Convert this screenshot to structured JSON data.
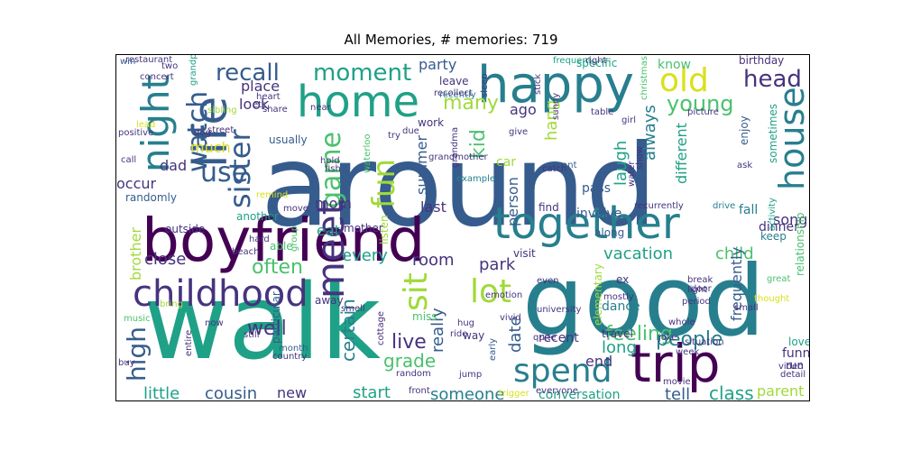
{
  "chart_data": {
    "type": "wordcloud",
    "title": "All Memories, # memories: 719",
    "colors": {
      "dark_purple": "#440154",
      "indigo": "#46337e",
      "blue_slate": "#365c8d",
      "steel_teal": "#277f8e",
      "teal": "#1fa187",
      "green": "#4ac16d",
      "yellow_green": "#a0da39",
      "yellow": "#d9e11b"
    },
    "words": [
      {
        "text": "around",
        "color": "blue_slate"
      },
      {
        "text": "walk",
        "color": "teal"
      },
      {
        "text": "good",
        "color": "steel_teal"
      },
      {
        "text": "boyfriend",
        "color": "dark_purple"
      },
      {
        "text": "together",
        "color": "steel_teal"
      },
      {
        "text": "happy",
        "color": "steel_teal"
      },
      {
        "text": "home",
        "color": "teal"
      },
      {
        "text": "life",
        "color": "blue_slate"
      },
      {
        "text": "trip",
        "color": "dark_purple"
      },
      {
        "text": "childhood",
        "color": "indigo"
      },
      {
        "text": "spend",
        "color": "steel_teal"
      },
      {
        "text": "old",
        "color": "yellow"
      },
      {
        "text": "night",
        "color": "steel_teal"
      },
      {
        "text": "house",
        "color": "steel_teal"
      },
      {
        "text": "watch",
        "color": "blue_slate"
      },
      {
        "text": "sister",
        "color": "blue_slate"
      },
      {
        "text": "meet",
        "color": "indigo"
      },
      {
        "text": "game",
        "color": "green"
      },
      {
        "text": "fun",
        "color": "yellow_green"
      },
      {
        "text": "moment",
        "color": "teal"
      },
      {
        "text": "recall",
        "color": "blue_slate"
      },
      {
        "text": "head",
        "color": "indigo"
      },
      {
        "text": "young",
        "color": "green"
      },
      {
        "text": "use",
        "color": "blue_slate"
      },
      {
        "text": "lot",
        "color": "yellow_green"
      },
      {
        "text": "sit",
        "color": "yellow_green"
      },
      {
        "text": "high",
        "color": "blue_slate"
      },
      {
        "text": "often",
        "color": "green"
      },
      {
        "text": "feeling",
        "color": "green"
      },
      {
        "text": "people",
        "color": "steel_teal"
      },
      {
        "text": "little",
        "color": "teal"
      },
      {
        "text": "cousin",
        "color": "blue_slate"
      },
      {
        "text": "new",
        "color": "indigo"
      },
      {
        "text": "start",
        "color": "teal"
      },
      {
        "text": "someone",
        "color": "steel_teal"
      },
      {
        "text": "class",
        "color": "teal"
      },
      {
        "text": "tell",
        "color": "blue_slate"
      },
      {
        "text": "parent",
        "color": "yellow_green"
      },
      {
        "text": "well",
        "color": "indigo"
      },
      {
        "text": "live",
        "color": "indigo"
      },
      {
        "text": "grade",
        "color": "green"
      },
      {
        "text": "long",
        "color": "teal"
      },
      {
        "text": "end",
        "color": "indigo"
      },
      {
        "text": "date",
        "color": "blue_slate"
      },
      {
        "text": "certain",
        "color": "steel_teal"
      },
      {
        "text": "really",
        "color": "blue_slate"
      },
      {
        "text": "park",
        "color": "indigo"
      },
      {
        "text": "room",
        "color": "indigo"
      },
      {
        "text": "every",
        "color": "teal"
      },
      {
        "text": "brother",
        "color": "yellow_green"
      },
      {
        "text": "close",
        "color": "indigo"
      },
      {
        "text": "eat",
        "color": "teal"
      },
      {
        "text": "mom",
        "color": "indigo"
      },
      {
        "text": "last",
        "color": "indigo"
      },
      {
        "text": "summer",
        "color": "blue_slate"
      },
      {
        "text": "kid",
        "color": "green"
      },
      {
        "text": "many",
        "color": "yellow_green"
      },
      {
        "text": "party",
        "color": "blue_slate"
      },
      {
        "text": "place",
        "color": "indigo"
      },
      {
        "text": "look",
        "color": "indigo"
      },
      {
        "text": "much",
        "color": "yellow"
      },
      {
        "text": "dad",
        "color": "indigo"
      },
      {
        "text": "occur",
        "color": "indigo"
      },
      {
        "text": "randomly",
        "color": "blue_slate"
      },
      {
        "text": "know",
        "color": "green"
      },
      {
        "text": "specific",
        "color": "teal"
      },
      {
        "text": "ago",
        "color": "indigo"
      },
      {
        "text": "hang",
        "color": "yellow_green"
      },
      {
        "text": "laugh",
        "color": "teal"
      },
      {
        "text": "always",
        "color": "steel_teal"
      },
      {
        "text": "different",
        "color": "teal"
      },
      {
        "text": "person",
        "color": "blue_slate"
      },
      {
        "text": "vacation",
        "color": "teal"
      },
      {
        "text": "child",
        "color": "green"
      },
      {
        "text": "song",
        "color": "indigo"
      },
      {
        "text": "fall",
        "color": "steel_teal"
      },
      {
        "text": "dinner",
        "color": "indigo"
      },
      {
        "text": "keep",
        "color": "steel_teal"
      },
      {
        "text": "frequently",
        "color": "blue_slate"
      },
      {
        "text": "funny",
        "color": "indigo"
      },
      {
        "text": "run",
        "color": "indigo"
      },
      {
        "text": "love",
        "color": "teal"
      },
      {
        "text": "enjoy",
        "color": "blue_slate"
      },
      {
        "text": "birthday",
        "color": "indigo"
      },
      {
        "text": "sometimes",
        "color": "teal"
      },
      {
        "text": "relationship",
        "color": "green"
      },
      {
        "text": "dance",
        "color": "steel_teal"
      },
      {
        "text": "travel",
        "color": "indigo"
      },
      {
        "text": "recent",
        "color": "indigo"
      },
      {
        "text": "along",
        "color": "blue_slate"
      },
      {
        "text": "involve",
        "color": "blue_slate"
      },
      {
        "text": "find",
        "color": "indigo"
      },
      {
        "text": "pass",
        "color": "blue_slate"
      },
      {
        "text": "visit",
        "color": "indigo"
      },
      {
        "text": "work",
        "color": "indigo"
      },
      {
        "text": "leave",
        "color": "indigo"
      },
      {
        "text": "recently",
        "color": "steel_teal"
      },
      {
        "text": "recollect",
        "color": "indigo"
      },
      {
        "text": "want",
        "color": "blue_slate"
      },
      {
        "text": "way",
        "color": "indigo"
      },
      {
        "text": "miss",
        "color": "green"
      },
      {
        "text": "hug",
        "color": "indigo"
      },
      {
        "text": "ride",
        "color": "indigo"
      },
      {
        "text": "conversation",
        "color": "teal"
      },
      {
        "text": "joke",
        "color": "indigo"
      },
      {
        "text": "situation",
        "color": "indigo"
      },
      {
        "text": "ask",
        "color": "indigo"
      },
      {
        "text": "drive",
        "color": "steel_teal"
      },
      {
        "text": "away",
        "color": "indigo"
      },
      {
        "text": "listen",
        "color": "yellow_green"
      },
      {
        "text": "mother",
        "color": "indigo"
      },
      {
        "text": "another",
        "color": "teal"
      },
      {
        "text": "outside",
        "color": "indigo"
      },
      {
        "text": "hard",
        "color": "indigo"
      },
      {
        "text": "able",
        "color": "green"
      },
      {
        "text": "particular",
        "color": "blue_slate"
      },
      {
        "text": "usually",
        "color": "blue_slate"
      },
      {
        "text": "example",
        "color": "steel_teal"
      },
      {
        "text": "move",
        "color": "indigo"
      },
      {
        "text": "hold",
        "color": "indigo"
      },
      {
        "text": "beach",
        "color": "indigo"
      },
      {
        "text": "month",
        "color": "blue_slate"
      },
      {
        "text": "country",
        "color": "indigo"
      },
      {
        "text": "jump",
        "color": "indigo"
      },
      {
        "text": "random",
        "color": "indigo"
      },
      {
        "text": "early",
        "color": "blue_slate"
      },
      {
        "text": "quite",
        "color": "indigo"
      },
      {
        "text": "vivid",
        "color": "indigo"
      },
      {
        "text": "elementary",
        "color": "yellow_green"
      },
      {
        "text": "ex",
        "color": "indigo"
      },
      {
        "text": "mostly",
        "color": "indigo"
      },
      {
        "text": "even",
        "color": "indigo"
      },
      {
        "text": "door",
        "color": "indigo"
      },
      {
        "text": "period",
        "color": "indigo"
      },
      {
        "text": "light",
        "color": "indigo"
      },
      {
        "text": "great",
        "color": "green"
      },
      {
        "text": "small",
        "color": "indigo"
      },
      {
        "text": "thought",
        "color": "yellow"
      },
      {
        "text": "whole",
        "color": "indigo"
      },
      {
        "text": "week",
        "color": "indigo"
      },
      {
        "text": "movie",
        "color": "indigo"
      },
      {
        "text": "video",
        "color": "indigo"
      },
      {
        "text": "detail",
        "color": "indigo"
      },
      {
        "text": "restaurant",
        "color": "indigo"
      },
      {
        "text": "concert",
        "color": "indigo"
      },
      {
        "text": "grandparent",
        "color": "teal"
      },
      {
        "text": "frequent",
        "color": "teal"
      },
      {
        "text": "right",
        "color": "indigo"
      },
      {
        "text": "heart",
        "color": "indigo"
      },
      {
        "text": "share",
        "color": "indigo"
      },
      {
        "text": "sibling",
        "color": "yellow_green"
      },
      {
        "text": "positive",
        "color": "indigo"
      },
      {
        "text": "street",
        "color": "indigo"
      },
      {
        "text": "dog",
        "color": "indigo"
      },
      {
        "text": "try",
        "color": "indigo"
      },
      {
        "text": "due",
        "color": "indigo"
      },
      {
        "text": "give",
        "color": "indigo"
      },
      {
        "text": "sleep",
        "color": "indigo"
      },
      {
        "text": "table",
        "color": "indigo"
      },
      {
        "text": "girl",
        "color": "indigo"
      },
      {
        "text": "picture",
        "color": "indigo"
      },
      {
        "text": "christmas",
        "color": "green"
      },
      {
        "text": "catch",
        "color": "indigo"
      },
      {
        "text": "water",
        "color": "indigo"
      },
      {
        "text": "grandma",
        "color": "indigo"
      },
      {
        "text": "grandmother",
        "color": "indigo"
      },
      {
        "text": "car",
        "color": "yellow_green"
      },
      {
        "text": "remind",
        "color": "yellow"
      },
      {
        "text": "waterloo",
        "color": "green"
      },
      {
        "text": "cottage",
        "color": "indigo"
      },
      {
        "text": "emotion",
        "color": "indigo"
      },
      {
        "text": "university",
        "color": "indigo"
      },
      {
        "text": "everyone",
        "color": "indigo"
      },
      {
        "text": "trigger",
        "color": "yellow"
      },
      {
        "text": "front",
        "color": "indigo"
      },
      {
        "text": "smell",
        "color": "indigo"
      },
      {
        "text": "music",
        "color": "green"
      },
      {
        "text": "buy",
        "color": "indigo"
      },
      {
        "text": "now",
        "color": "indigo"
      },
      {
        "text": "entire",
        "color": "indigo"
      },
      {
        "text": "still",
        "color": "indigo"
      },
      {
        "text": "bring",
        "color": "yellow_green"
      },
      {
        "text": "call",
        "color": "indigo"
      },
      {
        "text": "fish",
        "color": "indigo"
      },
      {
        "text": "etc",
        "color": "indigo"
      },
      {
        "text": "near",
        "color": "indigo"
      },
      {
        "text": "group",
        "color": "green"
      },
      {
        "text": "activity",
        "color": "teal"
      },
      {
        "text": "break",
        "color": "indigo"
      },
      {
        "text": "two",
        "color": "indigo"
      },
      {
        "text": "show",
        "color": "indigo"
      },
      {
        "text": "recurrently",
        "color": "indigo"
      },
      {
        "text": "lead",
        "color": "yellow"
      },
      {
        "text": "win",
        "color": "blue_slate"
      },
      {
        "text": "stick",
        "color": "indigo"
      },
      {
        "text": "sunny",
        "color": "indigo"
      }
    ]
  }
}
